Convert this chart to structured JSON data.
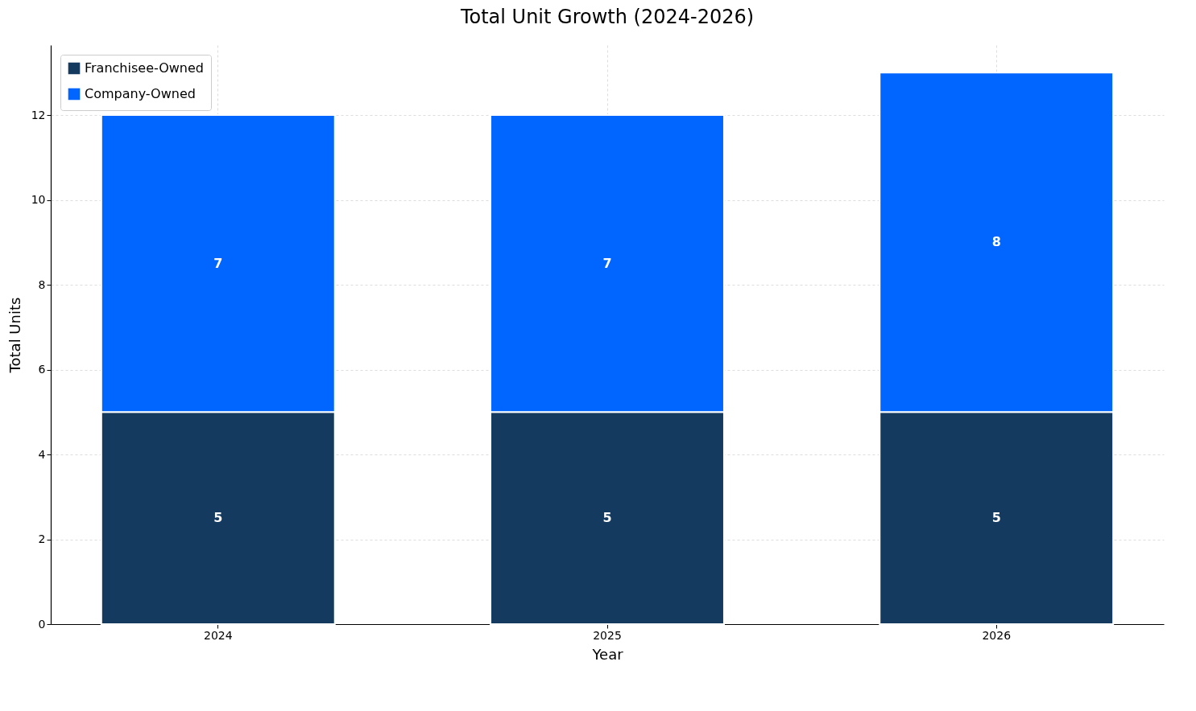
{
  "chart_data": {
    "type": "bar",
    "title": "Total Unit Growth (2024-2026)",
    "xlabel": "Year",
    "ylabel": "Total Units",
    "categories": [
      "2024",
      "2025",
      "2026"
    ],
    "stacked": true,
    "series": [
      {
        "name": "Franchisee-Owned",
        "color": "#143a60",
        "values": [
          5,
          5,
          5
        ]
      },
      {
        "name": "Company-Owned",
        "color": "#0066ff",
        "values": [
          7,
          7,
          8
        ]
      }
    ],
    "ylim": [
      0,
      13.65
    ],
    "yticks": [
      0,
      2,
      4,
      6,
      8,
      10,
      12
    ],
    "grid": true,
    "legend": "top left",
    "data_labels": true
  }
}
